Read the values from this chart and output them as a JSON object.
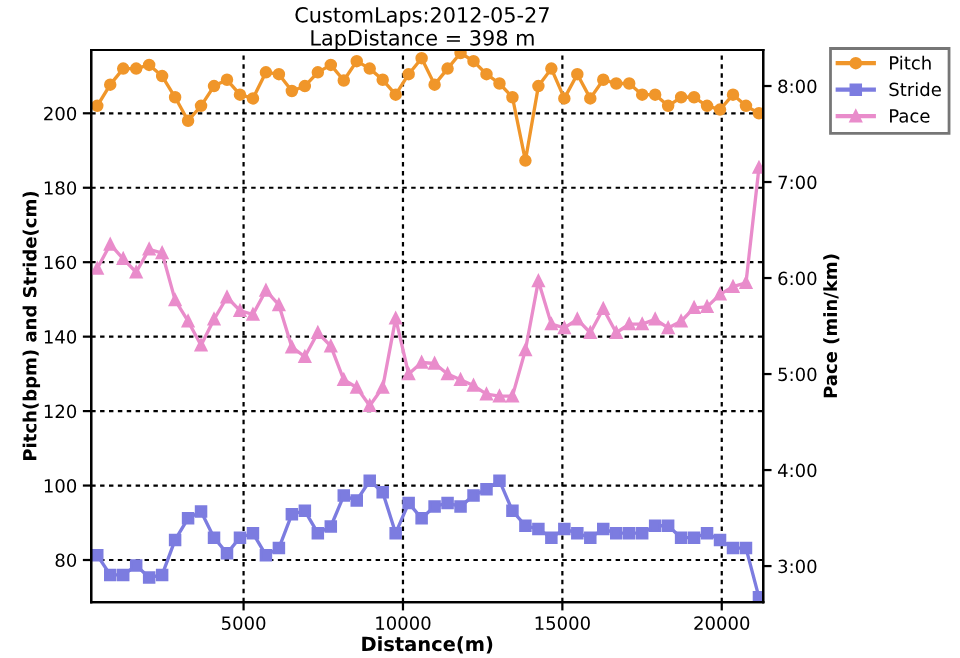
{
  "chart_data": {
    "type": "line",
    "title": "CustomLaps:2012-05-27",
    "subtitle": "LapDistance = 398 m",
    "xlabel": "Distance(m)",
    "ylabel": "Pitch(bpm) and Stride(cm)",
    "y2label": "Pace (min/km)",
    "x": [
      410,
      817,
      1224,
      1631,
      2038,
      2445,
      2852,
      3259,
      3666,
      4073,
      4480,
      4887,
      5294,
      5701,
      6108,
      6515,
      6922,
      7329,
      7736,
      8143,
      8550,
      8957,
      9364,
      9771,
      10178,
      10585,
      10992,
      11399,
      11806,
      12213,
      12620,
      13027,
      13434,
      13841,
      14248,
      14655,
      15062,
      15469,
      15876,
      16283,
      16690,
      17097,
      17504,
      17911,
      18318,
      18725,
      19132,
      19539,
      19946,
      20353,
      20760,
      21167
    ],
    "series": [
      {
        "name": "Pitch",
        "color": "#f0962a",
        "marker": "circle",
        "values": [
          202,
          207.7,
          212,
          212,
          213,
          210,
          204.3,
          198,
          202,
          207.3,
          209,
          205,
          204,
          211,
          210.5,
          206,
          207.3,
          211,
          213,
          208.8,
          214,
          212,
          209,
          205,
          210.5,
          214.8,
          207.7,
          212,
          216.2,
          214,
          210.5,
          208,
          204.3,
          187.3,
          207.3,
          212,
          204,
          210.5,
          204,
          209,
          208,
          208,
          205,
          205,
          202,
          204.3,
          204.3,
          202,
          201,
          205,
          202,
          200
        ]
      },
      {
        "name": "Stride",
        "color": "#7c7ce0",
        "marker": "square",
        "values": [
          81.3,
          76,
          76,
          78.5,
          75.3,
          76,
          85.4,
          91.2,
          93,
          86,
          81.8,
          86,
          87.2,
          81.3,
          83.2,
          92.3,
          93.2,
          87.2,
          89,
          97.3,
          96,
          101.3,
          98.2,
          87.2,
          95.3,
          91.2,
          94.4,
          95.3,
          94.4,
          97.3,
          99,
          101.3,
          93.2,
          89.2,
          88.3,
          86,
          88.3,
          87.2,
          86,
          88.3,
          87.2,
          87.2,
          87.2,
          89.2,
          89.2,
          86,
          86,
          87.2,
          85.4,
          83.2,
          83.2,
          70
        ]
      },
      {
        "name": "Pace",
        "color": "#e98ccb",
        "marker": "triangle",
        "axis": "y2",
        "values": [
          6.1,
          6.35,
          6.2,
          6.06,
          6.3,
          6.26,
          5.77,
          5.55,
          5.3,
          5.57,
          5.8,
          5.66,
          5.62,
          5.87,
          5.72,
          5.28,
          5.18,
          5.43,
          5.29,
          4.94,
          4.86,
          4.67,
          4.86,
          5.58,
          5.0,
          5.12,
          5.11,
          5.0,
          4.94,
          4.88,
          4.79,
          4.77,
          4.77,
          5.25,
          5.97,
          5.52,
          5.48,
          5.57,
          5.43,
          5.68,
          5.43,
          5.52,
          5.52,
          5.57,
          5.48,
          5.55,
          5.69,
          5.7,
          5.83,
          5.91,
          5.95,
          7.15
        ]
      }
    ],
    "xlim": [
      220,
      21300
    ],
    "xticks": [
      5000,
      10000,
      15000,
      20000
    ],
    "ylim": [
      68.7,
      217
    ],
    "yticks": [
      80,
      100,
      120,
      140,
      160,
      180,
      200
    ],
    "y2lim": [
      2.625,
      8.375
    ],
    "y2ticks": [
      {
        "value": 3,
        "label": "3:00"
      },
      {
        "value": 4,
        "label": "4:00"
      },
      {
        "value": 5,
        "label": "5:00"
      },
      {
        "value": 6,
        "label": "6:00"
      },
      {
        "value": 7,
        "label": "7:00"
      },
      {
        "value": 8,
        "label": "8:00"
      }
    ],
    "grid": true,
    "line_style": "solid",
    "legend": "top right"
  }
}
